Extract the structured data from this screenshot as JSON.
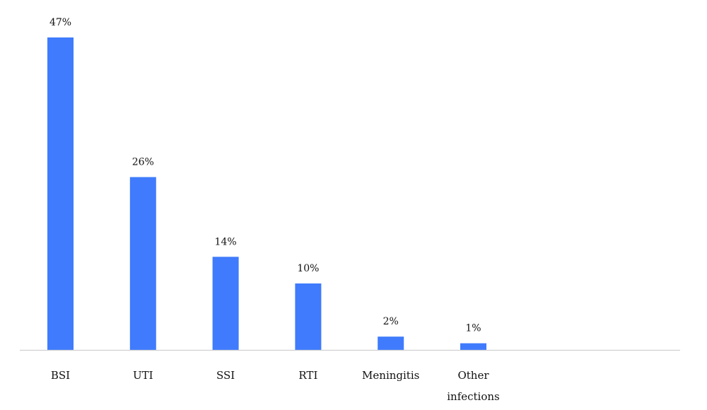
{
  "chart_data": {
    "type": "bar",
    "title": "",
    "xlabel": "",
    "ylabel": "",
    "categories": [
      "BSI",
      "UTI",
      "SSI",
      "RTI",
      "Meningitis",
      "Other infections"
    ],
    "values": [
      47,
      26,
      14,
      10,
      2,
      1
    ],
    "value_labels": [
      "47%",
      "26%",
      "14%",
      "10%",
      "2%",
      "1%"
    ],
    "ylim": [
      0,
      47
    ],
    "grid": false,
    "legend": "none",
    "bar_color": "#3f7bfc"
  }
}
